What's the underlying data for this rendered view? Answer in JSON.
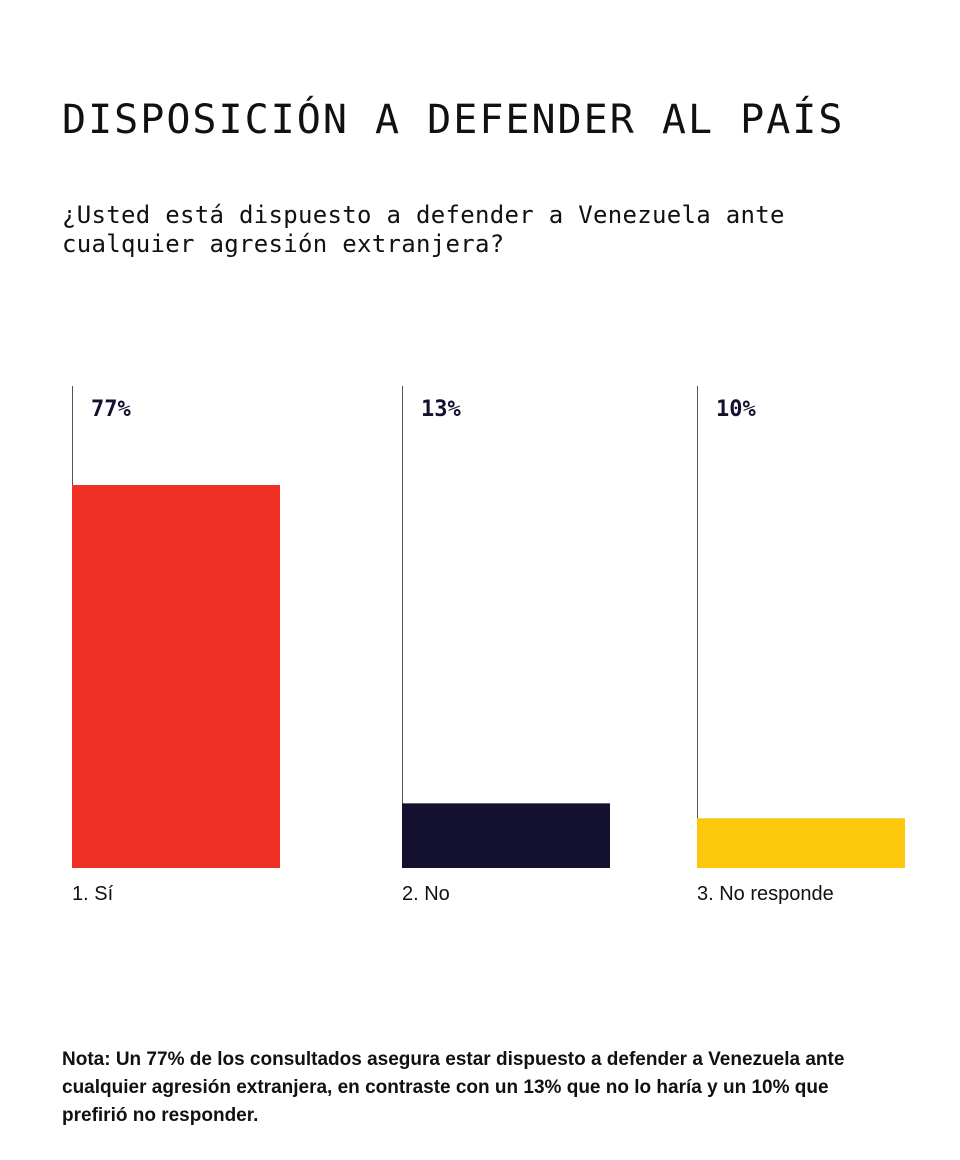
{
  "title": "DISPOSICIÓN A DEFENDER AL PAÍS",
  "subtitle": "¿Usted está dispuesto a defender a Venezuela ante cualquier agresión extranjera?",
  "note": "Nota: Un 77% de los consultados asegura estar dispuesto a defender a Venezuela ante cualquier agresión extranjera, en contraste con un 13% que no lo haría y un 10% que prefirió no responder.",
  "chart_data": {
    "type": "bar",
    "categories": [
      "1. Sí",
      "2. No",
      "3. No responde"
    ],
    "values": [
      77,
      13,
      10
    ],
    "value_labels": [
      "77%",
      "13%",
      "10%"
    ],
    "colors": [
      "#ee3124",
      "#141130",
      "#fdc70c"
    ],
    "ylim": [
      0,
      100
    ],
    "grid": false,
    "legend": "none"
  }
}
